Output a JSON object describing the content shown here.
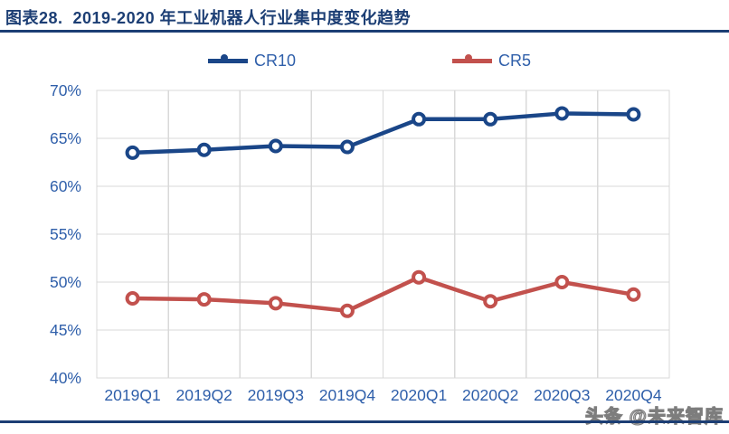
{
  "header": {
    "title": "图表28.  2019-2020 年工业机器人行业集中度变化趋势"
  },
  "watermark": {
    "text": "头条 @未来智库"
  },
  "colors": {
    "accent_navy": "#1C3E74",
    "tick_blue": "#2F5FAA",
    "grid": "#D9D9D9",
    "cr10": "#1A4688",
    "cr5": "#C2514D",
    "background": "#FFFFFF"
  },
  "chart_data": {
    "type": "line",
    "title": "2019-2020 年工业机器人行业集中度变化趋势",
    "categories": [
      "2019Q1",
      "2019Q2",
      "2019Q3",
      "2019Q4",
      "2020Q1",
      "2020Q2",
      "2020Q3",
      "2020Q4"
    ],
    "series": [
      {
        "name": "CR10",
        "color": "#1A4688",
        "values": [
          63.5,
          63.8,
          64.2,
          64.1,
          67.0,
          67.0,
          67.6,
          67.5
        ]
      },
      {
        "name": "CR5",
        "color": "#C2514D",
        "values": [
          48.3,
          48.2,
          47.8,
          47.0,
          50.5,
          48.0,
          50.0,
          48.7
        ]
      }
    ],
    "xlabel": "",
    "ylabel": "",
    "ylim": [
      40,
      70
    ],
    "y_ticks": [
      "70%",
      "65%",
      "60%",
      "55%",
      "50%",
      "45%",
      "40%"
    ],
    "y_tick_values": [
      70,
      65,
      60,
      55,
      50,
      45,
      40
    ],
    "unit": "%",
    "grid": "on",
    "legend_position": "top"
  }
}
